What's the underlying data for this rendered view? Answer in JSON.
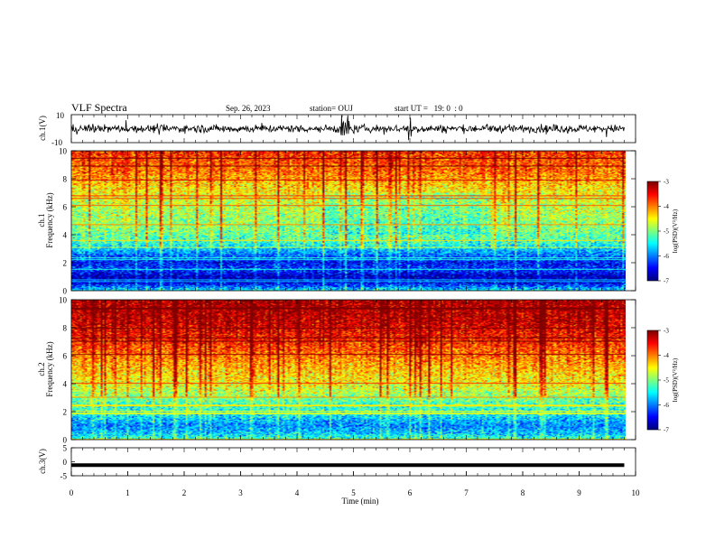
{
  "header": {
    "title": "VLF Spectra",
    "date": "Sep. 26, 2023",
    "station": "station= OUJ",
    "start": "start UT =   19: 0  : 0"
  },
  "chart_data": [
    {
      "type": "line",
      "name": "waveform-ch1",
      "ylabel": "ch.1(V)",
      "ylim": [
        -10,
        10
      ],
      "yticklabels": [
        "10",
        "-10"
      ],
      "x_range_min": [
        0,
        9.8
      ],
      "description": "VLF waveform of channel 1, dense noisy trace around about 0 V with spikes near 4.8-5.0 min and 6.0 min"
    },
    {
      "type": "heatmap",
      "name": "spectrogram-ch1",
      "ylabel": "ch.1\nFrequency (kHz)",
      "ylabel_line1": "ch.1",
      "ylabel_line2": "Frequency (kHz)",
      "ylim": [
        0,
        10
      ],
      "yticks": [
        0,
        2,
        4,
        6,
        8,
        10
      ],
      "xlim": [
        0,
        10
      ],
      "colorbar": {
        "label": "log(PSD)(V²/Hz)",
        "range": [
          -7,
          -3
        ],
        "ticks": [
          -3,
          -4,
          -5,
          -6,
          -7
        ]
      },
      "profile": [
        {
          "f": 0.0,
          "v": -5.6
        },
        {
          "f": 0.5,
          "v": -6.6
        },
        {
          "f": 1.0,
          "v": -6.8
        },
        {
          "f": 1.5,
          "v": -6.3
        },
        {
          "f": 2.0,
          "v": -6.5
        },
        {
          "f": 2.5,
          "v": -6.1
        },
        {
          "f": 3.0,
          "v": -5.7
        },
        {
          "f": 3.5,
          "v": -5.3
        },
        {
          "f": 4.5,
          "v": -5.0
        },
        {
          "f": 6.0,
          "v": -4.8
        },
        {
          "f": 7.5,
          "v": -4.4
        },
        {
          "f": 8.5,
          "v": -4.0
        },
        {
          "f": 10.0,
          "v": -3.7
        }
      ]
    },
    {
      "type": "heatmap",
      "name": "spectrogram-ch2",
      "ylabel": "ch.2\nFrequency (kHz)",
      "ylabel_line1": "ch.2",
      "ylabel_line2": "Frequency (kHz)",
      "ylim": [
        0,
        10
      ],
      "yticks": [
        0,
        2,
        4,
        6,
        8,
        10
      ],
      "xlim": [
        0,
        10
      ],
      "colorbar": {
        "label": "log(PSD)(V²/Hz)",
        "range": [
          -7,
          -3
        ],
        "ticks": [
          -3,
          -4,
          -5,
          -6,
          -7
        ]
      },
      "profile": [
        {
          "f": 0.0,
          "v": -5.3
        },
        {
          "f": 0.5,
          "v": -5.8
        },
        {
          "f": 1.0,
          "v": -6.0
        },
        {
          "f": 1.5,
          "v": -5.7
        },
        {
          "f": 2.0,
          "v": -5.4
        },
        {
          "f": 2.5,
          "v": -5.3
        },
        {
          "f": 3.0,
          "v": -5.0
        },
        {
          "f": 4.0,
          "v": -4.6
        },
        {
          "f": 5.5,
          "v": -4.2
        },
        {
          "f": 7.0,
          "v": -3.7
        },
        {
          "f": 8.5,
          "v": -3.3
        },
        {
          "f": 10.0,
          "v": -3.2
        }
      ]
    },
    {
      "type": "line",
      "name": "waveform-ch3",
      "ylabel": "ch.3(V)",
      "ylim": [
        -5,
        5
      ],
      "yticks": [
        5,
        0,
        -5
      ],
      "xlabel": "Time (min)",
      "xlim": [
        0,
        10
      ],
      "xticks": [
        0,
        1,
        2,
        3,
        4,
        5,
        6,
        7,
        8,
        9,
        10
      ],
      "constant_value": -1.2
    }
  ]
}
